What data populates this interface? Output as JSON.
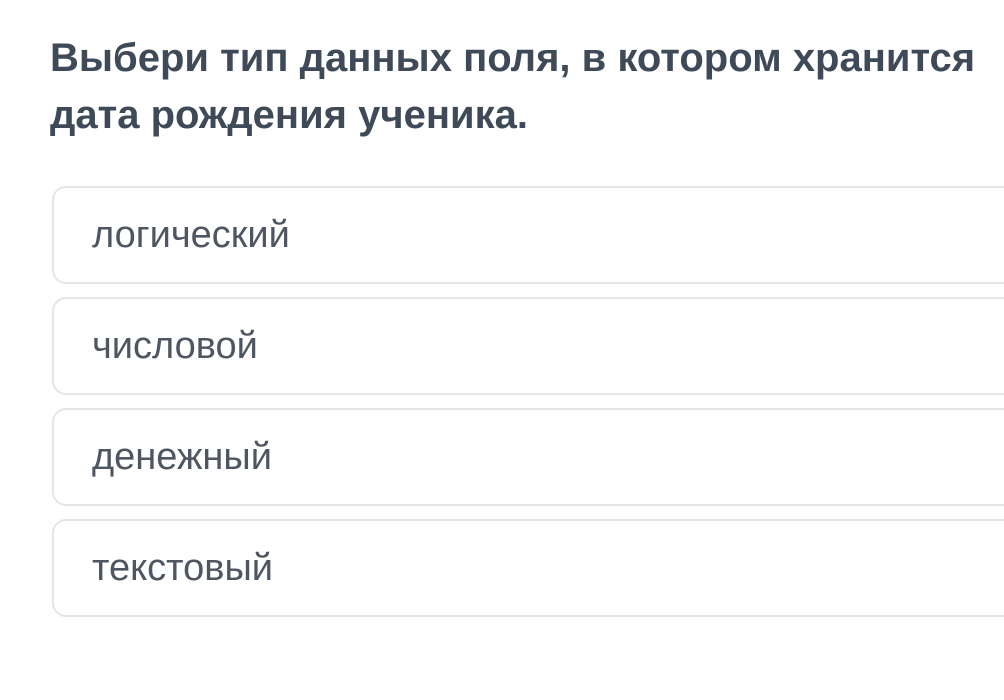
{
  "page": {
    "background_color": "#ffffff"
  },
  "question": {
    "text": "Выбери тип данных поля, в котором хранится дата рождения ученика.",
    "lines": [
      "Выбери тип данных поля, в котором хранится",
      "дата рождения ученика."
    ],
    "text_color": "#3e4a57"
  },
  "options": {
    "items": [
      {
        "label": "логический"
      },
      {
        "label": "числовой"
      },
      {
        "label": "денежный"
      },
      {
        "label": "текстовый"
      }
    ],
    "text_color": "#4d5661",
    "card_background": "#ffffff",
    "card_border_color": "#e3e6e9"
  }
}
